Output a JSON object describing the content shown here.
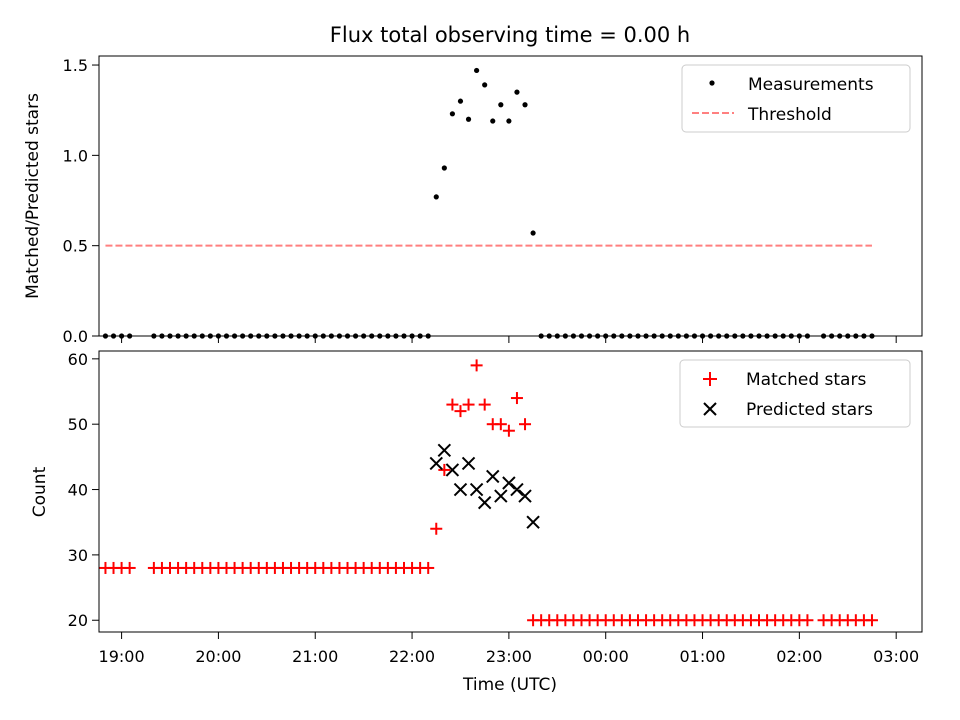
{
  "chart_data": [
    {
      "type": "scatter",
      "title": "Flux total observing time = 0.00 h",
      "xlabel": "",
      "ylabel": "Matched/Predicted stars",
      "xlim": [
        "18:46",
        "03:16"
      ],
      "ylim": [
        0,
        1.55
      ],
      "yticks": [
        "0.0",
        "0.5",
        "1.0",
        "1.5"
      ],
      "legend_position": "top-right",
      "series": [
        {
          "name": "Measurements",
          "marker": "dot",
          "color": "#000000",
          "points": [
            [
              "18:50",
              0
            ],
            [
              "18:55",
              0
            ],
            [
              "19:00",
              0
            ],
            [
              "19:05",
              0
            ],
            [
              "19:20",
              0
            ],
            [
              "19:25",
              0
            ],
            [
              "19:30",
              0
            ],
            [
              "19:35",
              0
            ],
            [
              "19:40",
              0
            ],
            [
              "19:45",
              0
            ],
            [
              "19:50",
              0
            ],
            [
              "19:55",
              0
            ],
            [
              "20:00",
              0
            ],
            [
              "20:05",
              0
            ],
            [
              "20:10",
              0
            ],
            [
              "20:15",
              0
            ],
            [
              "20:20",
              0
            ],
            [
              "20:25",
              0
            ],
            [
              "20:30",
              0
            ],
            [
              "20:35",
              0
            ],
            [
              "20:40",
              0
            ],
            [
              "20:45",
              0
            ],
            [
              "20:50",
              0
            ],
            [
              "20:55",
              0
            ],
            [
              "21:00",
              0
            ],
            [
              "21:05",
              0
            ],
            [
              "21:10",
              0
            ],
            [
              "21:15",
              0
            ],
            [
              "21:20",
              0
            ],
            [
              "21:25",
              0
            ],
            [
              "21:30",
              0
            ],
            [
              "21:35",
              0
            ],
            [
              "21:40",
              0
            ],
            [
              "21:45",
              0
            ],
            [
              "21:50",
              0
            ],
            [
              "21:55",
              0
            ],
            [
              "22:00",
              0
            ],
            [
              "22:05",
              0
            ],
            [
              "22:10",
              0
            ],
            [
              "22:15",
              0.77
            ],
            [
              "22:20",
              0.93
            ],
            [
              "22:25",
              1.23
            ],
            [
              "22:30",
              1.3
            ],
            [
              "22:35",
              1.2
            ],
            [
              "22:40",
              1.47
            ],
            [
              "22:45",
              1.39
            ],
            [
              "22:50",
              1.19
            ],
            [
              "22:55",
              1.28
            ],
            [
              "23:00",
              1.19
            ],
            [
              "23:05",
              1.35
            ],
            [
              "23:10",
              1.28
            ],
            [
              "23:15",
              0.57
            ],
            [
              "23:20",
              0
            ],
            [
              "23:25",
              0
            ],
            [
              "23:30",
              0
            ],
            [
              "23:35",
              0
            ],
            [
              "23:40",
              0
            ],
            [
              "23:45",
              0
            ],
            [
              "23:50",
              0
            ],
            [
              "23:55",
              0
            ],
            [
              "00:00",
              0
            ],
            [
              "00:05",
              0
            ],
            [
              "00:10",
              0
            ],
            [
              "00:15",
              0
            ],
            [
              "00:20",
              0
            ],
            [
              "00:25",
              0
            ],
            [
              "00:30",
              0
            ],
            [
              "00:35",
              0
            ],
            [
              "00:40",
              0
            ],
            [
              "00:45",
              0
            ],
            [
              "00:50",
              0
            ],
            [
              "00:55",
              0
            ],
            [
              "01:00",
              0
            ],
            [
              "01:05",
              0
            ],
            [
              "01:10",
              0
            ],
            [
              "01:15",
              0
            ],
            [
              "01:20",
              0
            ],
            [
              "01:25",
              0
            ],
            [
              "01:30",
              0
            ],
            [
              "01:35",
              0
            ],
            [
              "01:40",
              0
            ],
            [
              "01:45",
              0
            ],
            [
              "01:50",
              0
            ],
            [
              "01:55",
              0
            ],
            [
              "02:00",
              0
            ],
            [
              "02:05",
              0
            ],
            [
              "02:15",
              0
            ],
            [
              "02:20",
              0
            ],
            [
              "02:25",
              0
            ],
            [
              "02:30",
              0
            ],
            [
              "02:35",
              0
            ],
            [
              "02:40",
              0
            ],
            [
              "02:45",
              0
            ]
          ]
        },
        {
          "name": "Threshold",
          "type": "line",
          "style": "dashed",
          "color": "#ff8080",
          "points": [
            [
              "18:50",
              0.5
            ],
            [
              "02:45",
              0.5
            ]
          ]
        }
      ]
    },
    {
      "type": "scatter",
      "title": "",
      "xlabel": "Time (UTC)",
      "ylabel": "Count",
      "xlim": [
        "18:46",
        "03:16"
      ],
      "ylim": [
        18.2,
        61.2
      ],
      "yticks": [
        "20",
        "30",
        "40",
        "50",
        "60"
      ],
      "xticks": [
        "19:00",
        "20:00",
        "21:00",
        "22:00",
        "23:00",
        "00:00",
        "01:00",
        "02:00",
        "03:00"
      ],
      "legend_position": "top-right",
      "series": [
        {
          "name": "Matched stars",
          "marker": "plus",
          "color": "#ff0000",
          "points": [
            [
              "18:50",
              28
            ],
            [
              "18:55",
              28
            ],
            [
              "19:00",
              28
            ],
            [
              "19:05",
              28
            ],
            [
              "19:20",
              28
            ],
            [
              "19:25",
              28
            ],
            [
              "19:30",
              28
            ],
            [
              "19:35",
              28
            ],
            [
              "19:40",
              28
            ],
            [
              "19:45",
              28
            ],
            [
              "19:50",
              28
            ],
            [
              "19:55",
              28
            ],
            [
              "20:00",
              28
            ],
            [
              "20:05",
              28
            ],
            [
              "20:10",
              28
            ],
            [
              "20:15",
              28
            ],
            [
              "20:20",
              28
            ],
            [
              "20:25",
              28
            ],
            [
              "20:30",
              28
            ],
            [
              "20:35",
              28
            ],
            [
              "20:40",
              28
            ],
            [
              "20:45",
              28
            ],
            [
              "20:50",
              28
            ],
            [
              "20:55",
              28
            ],
            [
              "21:00",
              28
            ],
            [
              "21:05",
              28
            ],
            [
              "21:10",
              28
            ],
            [
              "21:15",
              28
            ],
            [
              "21:20",
              28
            ],
            [
              "21:25",
              28
            ],
            [
              "21:30",
              28
            ],
            [
              "21:35",
              28
            ],
            [
              "21:40",
              28
            ],
            [
              "21:45",
              28
            ],
            [
              "21:50",
              28
            ],
            [
              "21:55",
              28
            ],
            [
              "22:00",
              28
            ],
            [
              "22:05",
              28
            ],
            [
              "22:10",
              28
            ],
            [
              "22:15",
              34
            ],
            [
              "22:20",
              43
            ],
            [
              "22:25",
              53
            ],
            [
              "22:30",
              52
            ],
            [
              "22:35",
              53
            ],
            [
              "22:40",
              59
            ],
            [
              "22:45",
              53
            ],
            [
              "22:50",
              50
            ],
            [
              "22:55",
              50
            ],
            [
              "23:00",
              49
            ],
            [
              "23:05",
              54
            ],
            [
              "23:10",
              50
            ],
            [
              "23:15",
              20
            ],
            [
              "23:20",
              20
            ],
            [
              "23:25",
              20
            ],
            [
              "23:30",
              20
            ],
            [
              "23:35",
              20
            ],
            [
              "23:40",
              20
            ],
            [
              "23:45",
              20
            ],
            [
              "23:50",
              20
            ],
            [
              "23:55",
              20
            ],
            [
              "00:00",
              20
            ],
            [
              "00:05",
              20
            ],
            [
              "00:10",
              20
            ],
            [
              "00:15",
              20
            ],
            [
              "00:20",
              20
            ],
            [
              "00:25",
              20
            ],
            [
              "00:30",
              20
            ],
            [
              "00:35",
              20
            ],
            [
              "00:40",
              20
            ],
            [
              "00:45",
              20
            ],
            [
              "00:50",
              20
            ],
            [
              "00:55",
              20
            ],
            [
              "01:00",
              20
            ],
            [
              "01:05",
              20
            ],
            [
              "01:10",
              20
            ],
            [
              "01:15",
              20
            ],
            [
              "01:20",
              20
            ],
            [
              "01:25",
              20
            ],
            [
              "01:30",
              20
            ],
            [
              "01:35",
              20
            ],
            [
              "01:40",
              20
            ],
            [
              "01:45",
              20
            ],
            [
              "01:50",
              20
            ],
            [
              "01:55",
              20
            ],
            [
              "02:00",
              20
            ],
            [
              "02:05",
              20
            ],
            [
              "02:15",
              20
            ],
            [
              "02:20",
              20
            ],
            [
              "02:25",
              20
            ],
            [
              "02:30",
              20
            ],
            [
              "02:35",
              20
            ],
            [
              "02:40",
              20
            ],
            [
              "02:45",
              20
            ]
          ]
        },
        {
          "name": "Predicted stars",
          "marker": "x",
          "color": "#000000",
          "points": [
            [
              "22:15",
              44
            ],
            [
              "22:20",
              46
            ],
            [
              "22:25",
              43
            ],
            [
              "22:30",
              40
            ],
            [
              "22:35",
              44
            ],
            [
              "22:40",
              40
            ],
            [
              "22:45",
              38
            ],
            [
              "22:50",
              42
            ],
            [
              "22:55",
              39
            ],
            [
              "23:00",
              41
            ],
            [
              "23:05",
              40
            ],
            [
              "23:10",
              39
            ],
            [
              "23:15",
              35
            ]
          ]
        }
      ]
    }
  ]
}
